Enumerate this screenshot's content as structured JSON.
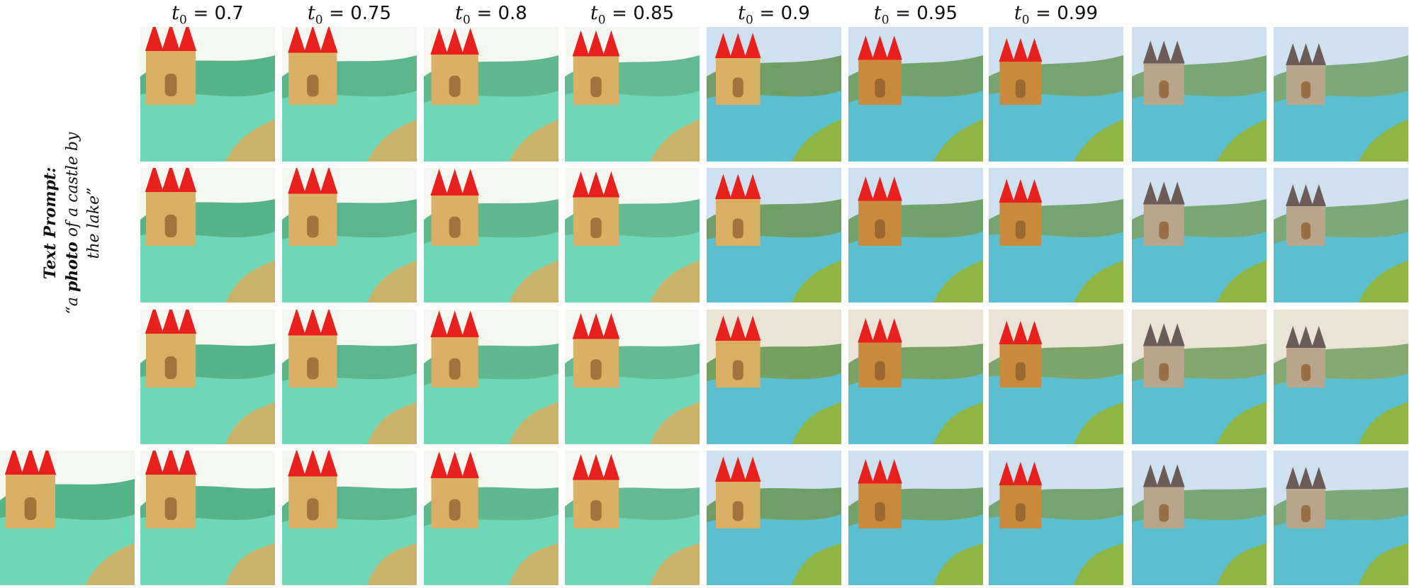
{
  "figure": {
    "columns": [
      {
        "var": "t",
        "sub": "0",
        "value": "= 0.7"
      },
      {
        "var": "t",
        "sub": "0",
        "value": "= 0.75"
      },
      {
        "var": "t",
        "sub": "0",
        "value": "= 0.8"
      },
      {
        "var": "t",
        "sub": "0",
        "value": "= 0.85"
      },
      {
        "var": "t",
        "sub": "0",
        "value": "= 0.9"
      },
      {
        "var": "t",
        "sub": "0",
        "value": "= 0.95"
      },
      {
        "var": "t",
        "sub": "0",
        "value": "= 0.99"
      }
    ],
    "prompt": {
      "heading": "Text Prompt:",
      "open_quote": "“a ",
      "bold_word": "photo",
      "rest": " of a castle by the lake”"
    },
    "palette": {
      "cartoon_water": "#6fd6b8",
      "cartoon_hill": "#3aa776",
      "roof_red": "#e8201e",
      "tower_tan": "#d9b066",
      "sky_light": "#f4f8f0",
      "real_water": "#5bbfcf",
      "real_forest": "#4f8a3a"
    }
  }
}
